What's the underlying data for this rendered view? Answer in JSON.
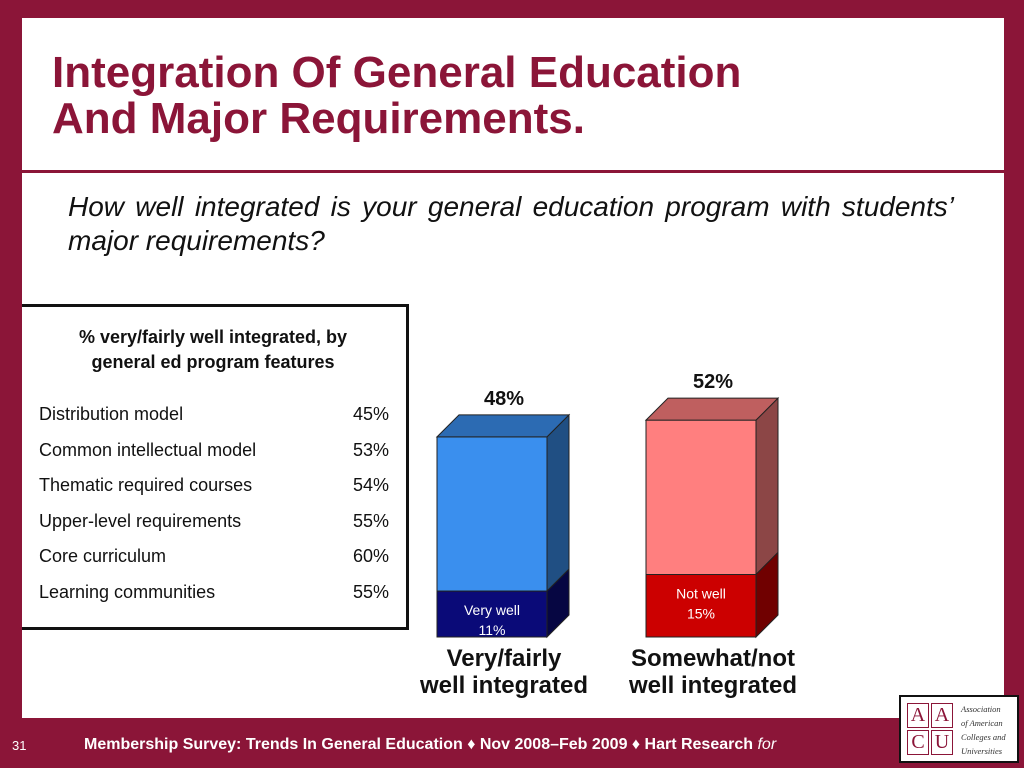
{
  "title": {
    "line1": "Integration Of General Education",
    "line2": "And Major Requirements."
  },
  "question": "How well integrated is your general education program with students’ major requirements?",
  "side_table": {
    "title_line1": "% very/fairly well integrated, by",
    "title_line2": "general ed program features",
    "rows": [
      {
        "label": "Distribution model",
        "value": "45%"
      },
      {
        "label": "Common intellectual model",
        "value": "53%"
      },
      {
        "label": "Thematic required courses",
        "value": "54%"
      },
      {
        "label": "Upper-level requirements",
        "value": "55%"
      },
      {
        "label": "Core curriculum",
        "value": "60%"
      },
      {
        "label": "Learning communities",
        "value": "55%"
      }
    ]
  },
  "chart_data": {
    "type": "bar",
    "stacked": true,
    "categories": [
      "Very/fairly well integrated",
      "Somewhat/not well integrated"
    ],
    "category_label_lines": [
      [
        "Very/fairly",
        "well integrated"
      ],
      [
        "Somewhat/not",
        "well integrated"
      ]
    ],
    "totals": [
      48,
      52
    ],
    "total_labels": [
      "48%",
      "52%"
    ],
    "segments": [
      {
        "category": "Very/fairly well integrated",
        "part": "Very well",
        "value": 11,
        "label_line1": "Very well",
        "label_line2": "11%"
      },
      {
        "category": "Somewhat/not well integrated",
        "part": "Not well",
        "value": 15,
        "label_line1": "Not well",
        "label_line2": "15%"
      }
    ],
    "colors": {
      "bar1_top": "#3a8fee",
      "bar1_bottom": "#0a0a78",
      "bar2_top": "#ff7f7f",
      "bar2_bottom": "#cc0000"
    },
    "grid": false,
    "ylim": [
      0,
      52
    ]
  },
  "footer": {
    "page_number": "31",
    "text": "Membership Survey: Trends In General Education ♦ Nov 2008–Feb 2009 ♦ Hart Research ",
    "suffix": "for"
  },
  "logo": {
    "letters": [
      "A",
      "A",
      "C",
      "U"
    ],
    "org_lines": [
      "Association",
      "of American",
      "Colleges and",
      "Universities"
    ]
  }
}
